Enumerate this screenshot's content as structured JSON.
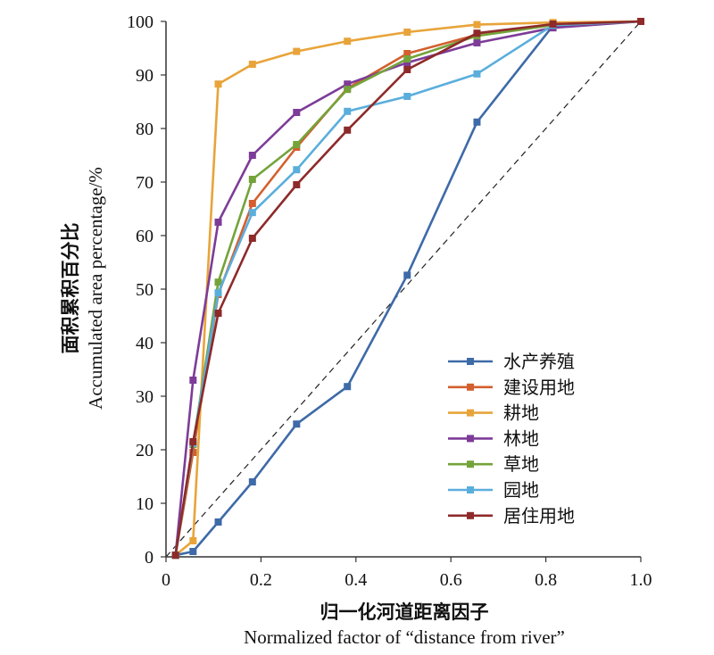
{
  "chart_data": {
    "type": "line",
    "xlabel_cn": "归一化河道距离因子",
    "xlabel_en": "Normalized factor of “distance from river”",
    "ylabel_cn": "面积累积百分比",
    "ylabel_en": "Accumulated area percentage/%",
    "xlim": [
      0,
      1.0
    ],
    "ylim": [
      0,
      100
    ],
    "x_ticks": [
      "0",
      "0.2",
      "0.4",
      "0.6",
      "0.8",
      "1.0"
    ],
    "y_ticks": [
      "0",
      "10",
      "20",
      "30",
      "40",
      "50",
      "60",
      "70",
      "80",
      "90",
      "100"
    ],
    "legend_position": "bottom-right",
    "reference_line": {
      "style": "dashed",
      "from": [
        0,
        0
      ],
      "to": [
        1.0,
        100
      ]
    },
    "series": [
      {
        "name": "水产养殖",
        "color": "#3e6aa8",
        "x": [
          0.02,
          0.057,
          0.11,
          0.182,
          0.275,
          0.382,
          0.508,
          0.655,
          0.815,
          1.0
        ],
        "values": [
          0.3,
          1.0,
          6.5,
          14.0,
          24.8,
          31.8,
          52.6,
          81.2,
          99.2,
          100
        ]
      },
      {
        "name": "建设用地",
        "color": "#d35f2e",
        "x": [
          0.02,
          0.057,
          0.11,
          0.182,
          0.275,
          0.382,
          0.508,
          0.655,
          0.815,
          1.0
        ],
        "values": [
          0.3,
          19.5,
          49.0,
          66.0,
          76.5,
          87.5,
          94.0,
          97.5,
          99.5,
          100
        ]
      },
      {
        "name": "耕地",
        "color": "#e8a43a",
        "x": [
          0.02,
          0.057,
          0.11,
          0.182,
          0.275,
          0.382,
          0.508,
          0.655,
          0.815,
          1.0
        ],
        "values": [
          0.3,
          3.0,
          88.3,
          92.0,
          94.4,
          96.3,
          98.0,
          99.4,
          99.8,
          100
        ]
      },
      {
        "name": "林地",
        "color": "#7d3c98",
        "x": [
          0.02,
          0.057,
          0.11,
          0.182,
          0.275,
          0.382,
          0.508,
          0.655,
          0.815,
          1.0
        ],
        "values": [
          0.3,
          33.0,
          62.5,
          75.0,
          83.0,
          88.3,
          92.3,
          96.0,
          98.8,
          100
        ]
      },
      {
        "name": "草地",
        "color": "#74a33a",
        "x": [
          0.02,
          0.057,
          0.11,
          0.182,
          0.275,
          0.382,
          0.508,
          0.655,
          0.815,
          1.0
        ],
        "values": [
          0.3,
          21.0,
          51.3,
          70.5,
          77.0,
          87.3,
          93.0,
          97.3,
          99.3,
          100
        ]
      },
      {
        "name": "园地",
        "color": "#5aaedc",
        "x": [
          0.02,
          0.057,
          0.11,
          0.182,
          0.275,
          0.382,
          0.508,
          0.655,
          0.815,
          1.0
        ],
        "values": [
          0.3,
          21.2,
          49.3,
          64.3,
          72.3,
          83.2,
          86.0,
          90.2,
          99.3,
          100
        ]
      },
      {
        "name": "居住用地",
        "color": "#8e2a2a",
        "x": [
          0.02,
          0.057,
          0.11,
          0.182,
          0.275,
          0.382,
          0.508,
          0.655,
          0.815,
          1.0
        ],
        "values": [
          0.3,
          21.5,
          45.5,
          59.5,
          69.5,
          79.7,
          91.0,
          97.8,
          99.5,
          100
        ]
      }
    ]
  }
}
